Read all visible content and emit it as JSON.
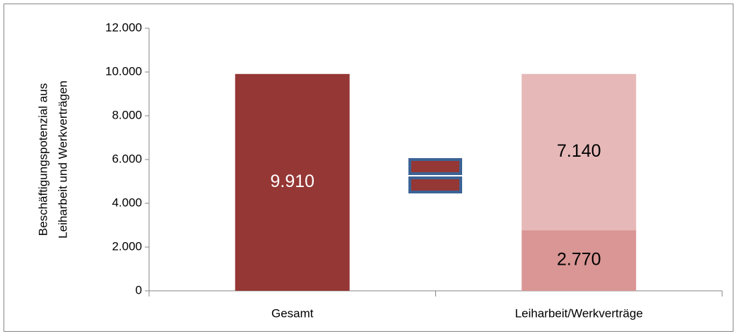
{
  "chart_data": {
    "type": "stacked_bar",
    "y_label": [
      "Beschäftigungspotenzial aus",
      "Leiharbeit und Werkverträgen"
    ],
    "categories": [
      "Gesamt",
      "Leiharbeit/Werkverträge"
    ],
    "series": [
      {
        "color": "#953735",
        "label_color": "#ffffff",
        "values": [
          9910,
          null
        ],
        "value_labels": [
          "9.910",
          null
        ]
      },
      {
        "color": "#d99694",
        "label_color": "#000000",
        "values": [
          null,
          2770
        ],
        "value_labels": [
          null,
          "2.770"
        ]
      },
      {
        "color": "#e6b9b8",
        "label_color": "#000000",
        "values": [
          null,
          7140
        ],
        "value_labels": [
          null,
          "7.140"
        ]
      }
    ],
    "ylim": [
      0,
      12000
    ],
    "yticks": [
      0,
      {
        "value": 2000,
        "label": "2.000"
      },
      {
        "value": 4000,
        "label": "4.000"
      },
      {
        "value": 6000,
        "label": "6.000"
      },
      {
        "value": 8000,
        "label": "8.000"
      },
      {
        "value": 10000,
        "label": "10.000"
      },
      {
        "value": 12000,
        "label": "12.000"
      }
    ],
    "grid": false
  }
}
